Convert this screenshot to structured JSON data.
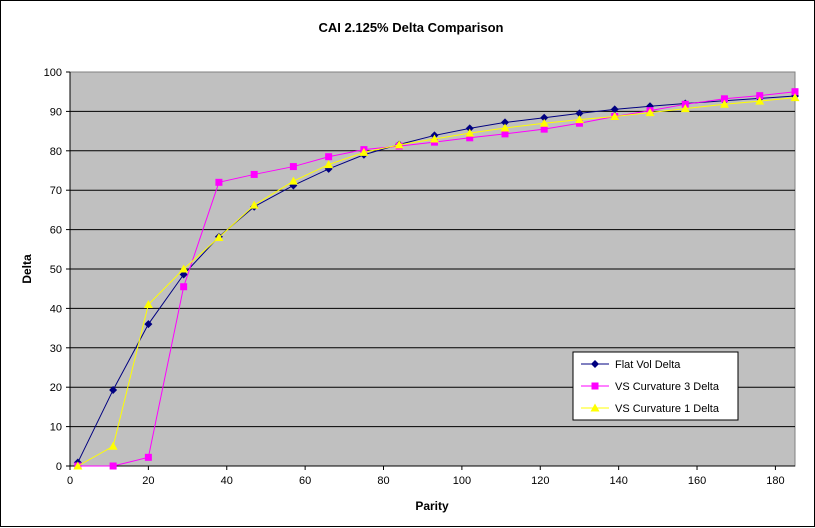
{
  "chart_data": {
    "type": "line",
    "title": "CAI 2.125% Delta Comparison",
    "xlabel": "Parity",
    "ylabel": "Delta",
    "xlim": [
      0,
      185
    ],
    "ylim": [
      0,
      100
    ],
    "x_ticks": [
      0,
      20,
      40,
      60,
      80,
      100,
      120,
      140,
      160,
      180
    ],
    "y_ticks": [
      0,
      10,
      20,
      30,
      40,
      50,
      60,
      70,
      80,
      90,
      100
    ],
    "grid": "horizontal",
    "plot_background": "#c0c0c0",
    "legend_position": "bottom-right",
    "series": [
      {
        "name": "Flat Vol Delta",
        "color": "#000080",
        "marker": "diamond",
        "x": [
          2,
          11,
          20,
          29,
          38,
          47,
          57,
          66,
          75,
          84,
          93,
          102,
          111,
          121,
          130,
          139,
          148,
          157,
          167,
          176,
          185
        ],
        "y": [
          0.9,
          19.3,
          36,
          48.6,
          58.2,
          65.8,
          71.2,
          75.4,
          79,
          81.6,
          83.9,
          85.7,
          87.2,
          88.4,
          89.5,
          90.5,
          91.3,
          92,
          92.7,
          93.3,
          93.9
        ]
      },
      {
        "name": "VS Curvature 3 Delta",
        "color": "#ff00ff",
        "marker": "square",
        "x": [
          2,
          11,
          20,
          29,
          38,
          47,
          57,
          66,
          75,
          84,
          93,
          102,
          111,
          121,
          130,
          139,
          148,
          157,
          167,
          176,
          185
        ],
        "y": [
          0,
          0,
          2.2,
          45.5,
          72,
          74,
          76,
          78.5,
          80.3,
          81.2,
          82.2,
          83.3,
          84.3,
          85.5,
          87,
          88.7,
          90.2,
          91.8,
          93.2,
          94,
          95
        ]
      },
      {
        "name": "VS Curvature 1 Delta",
        "color": "#ffff00",
        "marker": "triangle",
        "x": [
          2,
          11,
          20,
          29,
          38,
          47,
          57,
          66,
          75,
          84,
          93,
          102,
          111,
          121,
          130,
          139,
          148,
          157,
          167,
          176,
          185
        ],
        "y": [
          0,
          5,
          41,
          50,
          58,
          66.2,
          72.3,
          76.5,
          79.6,
          81.5,
          83,
          84.5,
          85.8,
          87,
          87.9,
          88.7,
          89.7,
          90.7,
          91.8,
          92.6,
          93.5
        ]
      }
    ]
  }
}
